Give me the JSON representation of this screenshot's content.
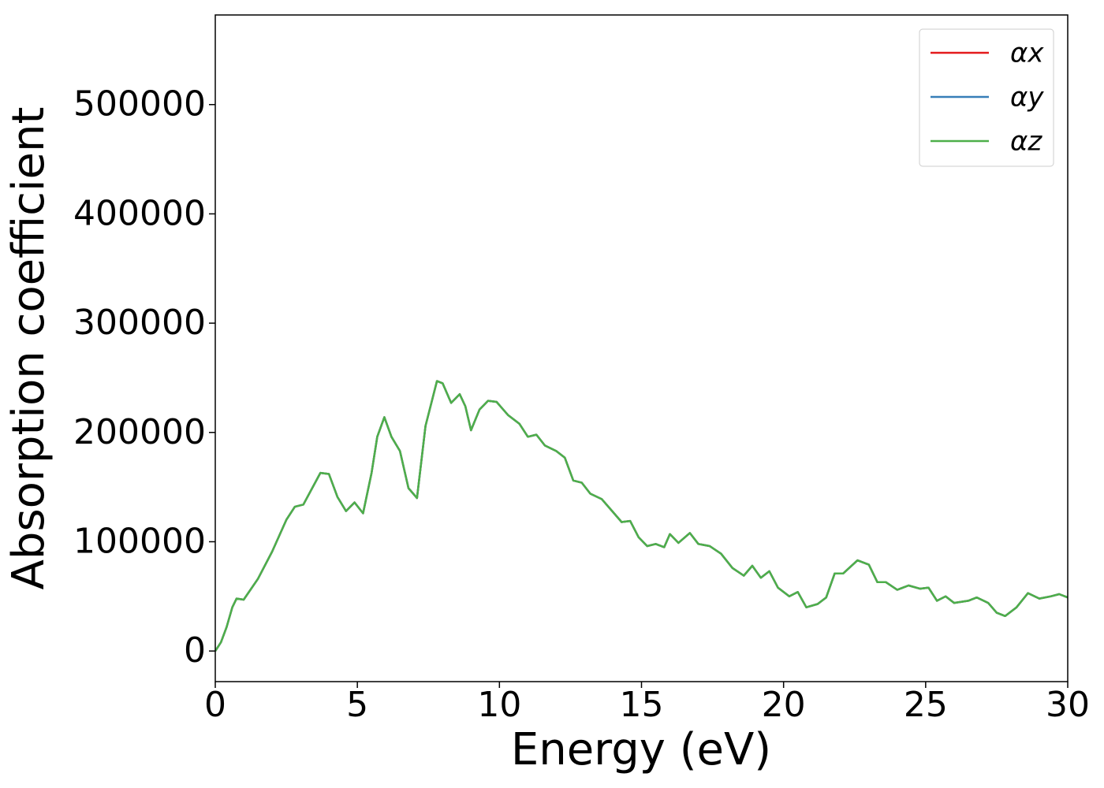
{
  "chart_data": {
    "type": "line",
    "xlabel": "Energy (eV)",
    "ylabel": "Absorption coefficient",
    "x": [
      0,
      0.2,
      0.4,
      0.6,
      0.75,
      1.0,
      1.5,
      2.0,
      2.5,
      2.8,
      3.1,
      3.7,
      4.0,
      4.3,
      4.6,
      4.9,
      5.2,
      5.5,
      5.7,
      5.95,
      6.2,
      6.5,
      6.8,
      7.1,
      7.4,
      7.8,
      8.0,
      8.3,
      8.6,
      8.8,
      9.0,
      9.3,
      9.6,
      9.9,
      10.3,
      10.7,
      11.0,
      11.3,
      11.6,
      12.0,
      12.3,
      12.6,
      12.9,
      13.2,
      13.6,
      14.0,
      14.3,
      14.6,
      14.9,
      15.2,
      15.5,
      15.8,
      16.0,
      16.3,
      16.7,
      17.0,
      17.4,
      17.8,
      18.2,
      18.6,
      18.9,
      19.2,
      19.5,
      19.8,
      20.2,
      20.5,
      20.8,
      21.2,
      21.5,
      21.8,
      22.1,
      22.6,
      23.0,
      23.3,
      23.6,
      24.0,
      24.4,
      24.8,
      25.1,
      25.4,
      25.7,
      26.0,
      26.5,
      26.8,
      27.2,
      27.5,
      27.8,
      28.2,
      28.6,
      29.0,
      29.4,
      29.7,
      30.0
    ],
    "series": [
      {
        "name": "αx",
        "color": "#e41a1c",
        "values": [
          0,
          8000,
          22000,
          40000,
          48000,
          47000,
          66000,
          91000,
          120000,
          132000,
          134000,
          163000,
          162000,
          141000,
          128000,
          136000,
          126000,
          163000,
          196000,
          214000,
          196000,
          183000,
          149000,
          140000,
          206000,
          247000,
          245000,
          227000,
          235000,
          224000,
          202000,
          221000,
          229000,
          228000,
          216000,
          208000,
          196000,
          198000,
          188000,
          183000,
          177000,
          156000,
          154000,
          144000,
          139000,
          127000,
          118000,
          119000,
          104000,
          96000,
          98000,
          95000,
          107000,
          99000,
          108000,
          98000,
          96000,
          89000,
          76000,
          69000,
          78000,
          67000,
          73000,
          58000,
          50000,
          54000,
          40000,
          43000,
          49000,
          71000,
          71000,
          83000,
          79000,
          63000,
          63000,
          56000,
          60000,
          57000,
          58000,
          46000,
          50000,
          44000,
          46000,
          49000,
          44000,
          35000,
          32000,
          40000,
          53000,
          48000,
          50000,
          52000,
          49000
        ]
      },
      {
        "name": "αy",
        "color": "#377eb8",
        "values": [
          0,
          8000,
          22000,
          40000,
          48000,
          47000,
          66000,
          91000,
          120000,
          132000,
          134000,
          163000,
          162000,
          141000,
          128000,
          136000,
          126000,
          163000,
          196000,
          214000,
          196000,
          183000,
          149000,
          140000,
          206000,
          247000,
          245000,
          227000,
          235000,
          224000,
          202000,
          221000,
          229000,
          228000,
          216000,
          208000,
          196000,
          198000,
          188000,
          183000,
          177000,
          156000,
          154000,
          144000,
          139000,
          127000,
          118000,
          119000,
          104000,
          96000,
          98000,
          95000,
          107000,
          99000,
          108000,
          98000,
          96000,
          89000,
          76000,
          69000,
          78000,
          67000,
          73000,
          58000,
          50000,
          54000,
          40000,
          43000,
          49000,
          71000,
          71000,
          83000,
          79000,
          63000,
          63000,
          56000,
          60000,
          57000,
          58000,
          46000,
          50000,
          44000,
          46000,
          49000,
          44000,
          35000,
          32000,
          40000,
          53000,
          48000,
          50000,
          52000,
          49000
        ]
      },
      {
        "name": "αz",
        "color": "#4daf4a",
        "values": [
          0,
          8000,
          22000,
          40000,
          48000,
          47000,
          66000,
          91000,
          120000,
          132000,
          134000,
          163000,
          162000,
          141000,
          128000,
          136000,
          126000,
          163000,
          196000,
          214000,
          196000,
          183000,
          149000,
          140000,
          206000,
          247000,
          245000,
          227000,
          235000,
          224000,
          202000,
          221000,
          229000,
          228000,
          216000,
          208000,
          196000,
          198000,
          188000,
          183000,
          177000,
          156000,
          154000,
          144000,
          139000,
          127000,
          118000,
          119000,
          104000,
          96000,
          98000,
          95000,
          107000,
          99000,
          108000,
          98000,
          96000,
          89000,
          76000,
          69000,
          78000,
          67000,
          73000,
          58000,
          50000,
          54000,
          40000,
          43000,
          49000,
          71000,
          71000,
          83000,
          79000,
          63000,
          63000,
          56000,
          60000,
          57000,
          58000,
          46000,
          50000,
          44000,
          46000,
          49000,
          44000,
          35000,
          32000,
          40000,
          53000,
          48000,
          50000,
          52000,
          49000
        ]
      }
    ],
    "xlim": [
      0,
      30
    ],
    "xticks": [
      0,
      5,
      10,
      15,
      20,
      25,
      30
    ],
    "ylim": [
      -28000,
      582000
    ],
    "yticks": [
      0,
      100000,
      200000,
      300000,
      400000,
      500000
    ],
    "grid": false,
    "legend": "upper right"
  }
}
